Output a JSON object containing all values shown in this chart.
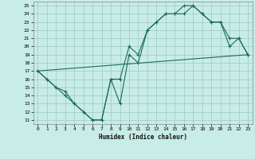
{
  "xlabel": "Humidex (Indice chaleur)",
  "bg_color": "#c8ece6",
  "grid_color": "#a0d0c8",
  "line_color": "#1a6b5a",
  "xlim": [
    -0.5,
    23.5
  ],
  "ylim": [
    10.5,
    25.5
  ],
  "xticks": [
    0,
    1,
    2,
    3,
    4,
    5,
    6,
    7,
    8,
    9,
    10,
    11,
    12,
    13,
    14,
    15,
    16,
    17,
    18,
    19,
    20,
    21,
    22,
    23
  ],
  "yticks": [
    11,
    12,
    13,
    14,
    15,
    16,
    17,
    18,
    19,
    20,
    21,
    22,
    23,
    24,
    25
  ],
  "line1_x": [
    0,
    1,
    2,
    3,
    4,
    5,
    6,
    7,
    8,
    9,
    10,
    11,
    12,
    13,
    14,
    15,
    16,
    17,
    18,
    19,
    20,
    21,
    22,
    23
  ],
  "line1_y": [
    17,
    16,
    15,
    14,
    13,
    12,
    11,
    11,
    16,
    16,
    20,
    19,
    22,
    23,
    24,
    24,
    25,
    25,
    24,
    23,
    23,
    20,
    21,
    19
  ],
  "line2_x": [
    0,
    1,
    2,
    3,
    4,
    5,
    6,
    7,
    8,
    9,
    10,
    11,
    12,
    13,
    14,
    15,
    16,
    17,
    18,
    19,
    20,
    21,
    22,
    23
  ],
  "line2_y": [
    17,
    16,
    15,
    14.5,
    13,
    12,
    11,
    11,
    16,
    13,
    19,
    18,
    22,
    23,
    24,
    24,
    24,
    25,
    24,
    23,
    23,
    21,
    21,
    19
  ],
  "line3_x": [
    0,
    23
  ],
  "line3_y": [
    17,
    19
  ]
}
